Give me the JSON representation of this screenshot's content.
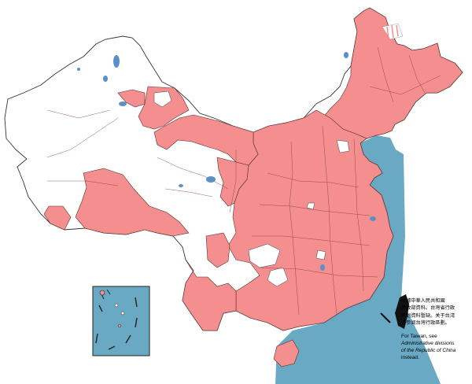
{
  "legend_note": {
    "zh_lines": [
      "根據中華人民共和國",
      "民政部資料。台灣省行政",
      "區划資料暫缺。关于台湾",
      "请参阅台灣行政區劃。"
    ],
    "en_line1": "For Taiwan, see",
    "en_link_line1": "Administrative divisions",
    "en_link_line2": "of the Republic of China",
    "en_line4": "instead."
  },
  "colors": {
    "highlighted_region": "#f58e8e",
    "unshaded_region": "#ffffff",
    "sea": "#6aa9c3",
    "taiwan": "#111111",
    "border": "#333333",
    "lake": "#5b8fc7"
  }
}
